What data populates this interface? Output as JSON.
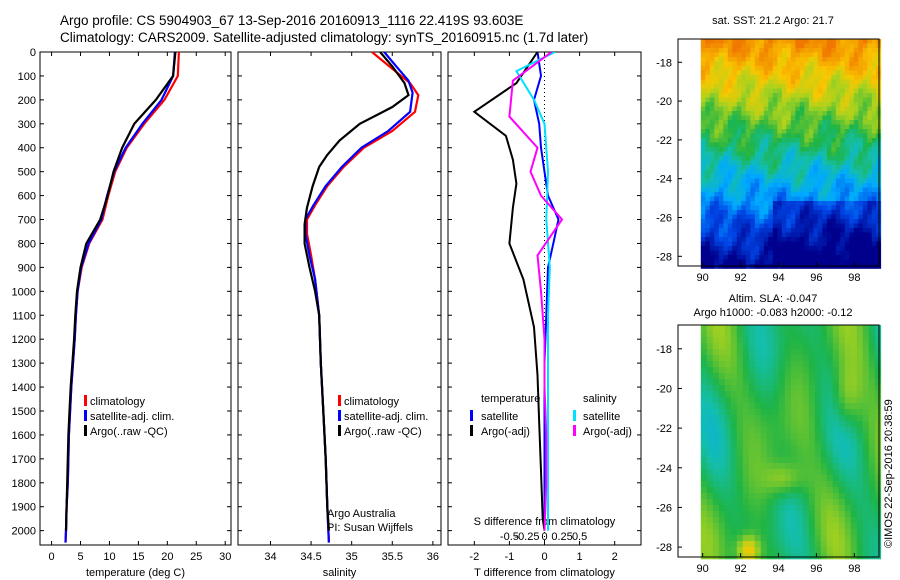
{
  "header": {
    "line1": "Argo profile: CS 5904903_67 13-Sep-2016 20160913_1116 22.419S 93.603E",
    "line2": "Climatology: CARS2009. Satellite-adjusted climatology: synTS_20160915.nc (1.7d later)"
  },
  "colors": {
    "climatology": "#ff0000",
    "satellite": "#0000ff",
    "argo": "#000000",
    "sat_salinity": "#00e0ff",
    "argo_salinity": "#ff00ff"
  },
  "depth_axis": {
    "ticks": [
      0,
      100,
      200,
      300,
      400,
      500,
      600,
      700,
      800,
      900,
      1000,
      1100,
      1200,
      1300,
      1400,
      1500,
      1600,
      1700,
      1800,
      1900,
      2000
    ],
    "range": [
      0,
      2060
    ]
  },
  "chart_data": [
    {
      "type": "line",
      "id": "temperature",
      "xlabel": "temperature (deg C)",
      "xlim": [
        -2,
        31
      ],
      "xticks": [
        0,
        5,
        10,
        15,
        20,
        25,
        30
      ],
      "legend": [
        "climatology",
        "satellite-adj. clim.",
        "Argo(..raw -QC)"
      ],
      "series": [
        {
          "name": "climatology",
          "color": "#ff0000",
          "points": [
            [
              22.0,
              0
            ],
            [
              21.8,
              100
            ],
            [
              19.5,
              200
            ],
            [
              16,
              300
            ],
            [
              13,
              400
            ],
            [
              11,
              500
            ],
            [
              9.8,
              600
            ],
            [
              8.8,
              700
            ],
            [
              6.5,
              800
            ],
            [
              5.2,
              900
            ],
            [
              4.5,
              1000
            ],
            [
              4.2,
              1100
            ],
            [
              4.0,
              1200
            ],
            [
              3.7,
              1300
            ],
            [
              3.4,
              1400
            ],
            [
              3.2,
              1500
            ],
            [
              3.0,
              1600
            ],
            [
              2.9,
              1700
            ],
            [
              2.8,
              1800
            ],
            [
              2.6,
              1900
            ],
            [
              2.5,
              2000
            ],
            [
              2.4,
              2050
            ]
          ]
        },
        {
          "name": "satellite-adj. clim.",
          "color": "#0000ff",
          "points": [
            [
              21.3,
              0
            ],
            [
              21.0,
              100
            ],
            [
              19.0,
              200
            ],
            [
              15.7,
              300
            ],
            [
              12.8,
              400
            ],
            [
              10.8,
              500
            ],
            [
              9.6,
              600
            ],
            [
              8.6,
              700
            ],
            [
              6.4,
              800
            ],
            [
              5.1,
              900
            ],
            [
              4.5,
              1000
            ],
            [
              4.2,
              1100
            ],
            [
              4.0,
              1200
            ],
            [
              3.7,
              1300
            ],
            [
              3.4,
              1400
            ],
            [
              3.2,
              1500
            ],
            [
              3.0,
              1600
            ],
            [
              2.9,
              1700
            ],
            [
              2.8,
              1800
            ],
            [
              2.6,
              1900
            ],
            [
              2.5,
              2000
            ],
            [
              2.4,
              2050
            ]
          ]
        },
        {
          "name": "Argo(..raw -QC)",
          "color": "#000000",
          "points": [
            [
              21.4,
              0
            ],
            [
              21.0,
              100
            ],
            [
              18.0,
              200
            ],
            [
              14.3,
              300
            ],
            [
              12.2,
              400
            ],
            [
              10.7,
              500
            ],
            [
              9.7,
              600
            ],
            [
              8.4,
              700
            ],
            [
              6.0,
              800
            ],
            [
              5.0,
              900
            ],
            [
              4.4,
              1000
            ],
            [
              4.1,
              1100
            ],
            [
              3.9,
              1200
            ],
            [
              3.6,
              1300
            ],
            [
              3.3,
              1400
            ],
            [
              3.1,
              1500
            ],
            [
              2.9,
              1600
            ],
            [
              2.8,
              1700
            ],
            [
              2.7,
              1800
            ],
            [
              2.6,
              1900
            ],
            [
              2.5,
              2000
            ]
          ]
        }
      ]
    },
    {
      "type": "line",
      "id": "salinity",
      "xlabel": "salinity",
      "xlim": [
        33.6,
        36.1
      ],
      "xticks": [
        34,
        34.5,
        35,
        35.5,
        36
      ],
      "legend": [
        "climatology",
        "satellite-adj. clim.",
        "Argo(..raw -QC)"
      ],
      "annotation": [
        "Argo Australia",
        "PI: Susan Wijffels"
      ],
      "series": [
        {
          "name": "climatology",
          "color": "#ff0000",
          "points": [
            [
              35.25,
              0
            ],
            [
              35.5,
              70
            ],
            [
              35.72,
              130
            ],
            [
              35.82,
              180
            ],
            [
              35.78,
              250
            ],
            [
              35.5,
              330
            ],
            [
              35.15,
              400
            ],
            [
              34.9,
              480
            ],
            [
              34.7,
              560
            ],
            [
              34.55,
              640
            ],
            [
              34.45,
              700
            ],
            [
              34.45,
              760
            ],
            [
              34.5,
              850
            ],
            [
              34.55,
              950
            ],
            [
              34.6,
              1100
            ],
            [
              34.62,
              1300
            ],
            [
              34.65,
              1500
            ],
            [
              34.68,
              1700
            ],
            [
              34.7,
              1900
            ],
            [
              34.72,
              2050
            ]
          ]
        },
        {
          "name": "satellite-adj. clim.",
          "color": "#0000ff",
          "points": [
            [
              35.4,
              0
            ],
            [
              35.55,
              60
            ],
            [
              35.7,
              120
            ],
            [
              35.75,
              170
            ],
            [
              35.72,
              250
            ],
            [
              35.45,
              330
            ],
            [
              35.12,
              400
            ],
            [
              34.88,
              480
            ],
            [
              34.68,
              560
            ],
            [
              34.53,
              640
            ],
            [
              34.43,
              700
            ],
            [
              34.43,
              760
            ],
            [
              34.48,
              850
            ],
            [
              34.55,
              950
            ],
            [
              34.6,
              1100
            ],
            [
              34.62,
              1300
            ],
            [
              34.65,
              1500
            ],
            [
              34.68,
              1700
            ],
            [
              34.7,
              1900
            ],
            [
              34.72,
              2050
            ]
          ]
        },
        {
          "name": "Argo(..raw -QC)",
          "color": "#000000",
          "points": [
            [
              35.35,
              0
            ],
            [
              35.5,
              60
            ],
            [
              35.65,
              130
            ],
            [
              35.7,
              180
            ],
            [
              35.5,
              230
            ],
            [
              35.1,
              300
            ],
            [
              34.85,
              370
            ],
            [
              34.7,
              430
            ],
            [
              34.6,
              480
            ],
            [
              34.52,
              560
            ],
            [
              34.45,
              650
            ],
            [
              34.42,
              720
            ],
            [
              34.42,
              800
            ],
            [
              34.48,
              900
            ],
            [
              34.55,
              1000
            ],
            [
              34.6,
              1100
            ],
            [
              34.62,
              1300
            ],
            [
              34.65,
              1500
            ],
            [
              34.68,
              1700
            ],
            [
              34.7,
              1900
            ],
            [
              34.72,
              2000
            ]
          ]
        }
      ]
    },
    {
      "type": "line",
      "id": "difference",
      "xlabel": "T difference from climatology",
      "xlabel_top": "S difference from climatology",
      "xlim": [
        -2.75,
        2.75
      ],
      "xticks": [
        -2,
        -1,
        0,
        1,
        2
      ],
      "xticks_top": [
        "-0.5",
        "-0.25",
        "0",
        "0.25",
        "0.5"
      ],
      "legend_temperature": [
        "temperature",
        "satellite",
        "Argo(-adj)"
      ],
      "legend_salinity": [
        "salinity",
        "satellite",
        "Argo(-adj)"
      ],
      "series": [
        {
          "name": "satellite",
          "color": "#0000ff",
          "points": [
            [
              -0.2,
              0
            ],
            [
              -0.1,
              100
            ],
            [
              -0.3,
              200
            ],
            [
              -0.15,
              300
            ],
            [
              -0.1,
              400
            ],
            [
              0.0,
              500
            ],
            [
              0.1,
              600
            ],
            [
              0.4,
              700
            ],
            [
              0.25,
              800
            ],
            [
              0.1,
              900
            ],
            [
              0.05,
              1100
            ],
            [
              0.0,
              1300
            ],
            [
              0.0,
              1500
            ],
            [
              0.0,
              1700
            ],
            [
              0.0,
              1900
            ],
            [
              0.0,
              2000
            ]
          ]
        },
        {
          "name": "Argo(-adj)",
          "color": "#000000",
          "points": [
            [
              -0.2,
              0
            ],
            [
              -0.8,
              130
            ],
            [
              -2.0,
              250
            ],
            [
              -1.1,
              350
            ],
            [
              -0.9,
              450
            ],
            [
              -0.8,
              550
            ],
            [
              -0.9,
              650
            ],
            [
              -1.0,
              800
            ],
            [
              -0.6,
              950
            ],
            [
              -0.3,
              1150
            ],
            [
              -0.2,
              1350
            ],
            [
              -0.15,
              1550
            ],
            [
              -0.1,
              1750
            ],
            [
              -0.05,
              1950
            ],
            [
              0.0,
              2000
            ]
          ]
        },
        {
          "name": "satellite",
          "color": "#00e0ff",
          "points": [
            [
              0.3,
              0
            ],
            [
              -0.8,
              80
            ],
            [
              -0.3,
              200
            ],
            [
              0.0,
              300
            ],
            [
              0.1,
              500
            ],
            [
              0.05,
              700
            ],
            [
              0.15,
              900
            ],
            [
              0.1,
              1100
            ],
            [
              0.1,
              1300
            ],
            [
              0.1,
              1500
            ],
            [
              0.1,
              1700
            ],
            [
              0.1,
              1900
            ],
            [
              0.1,
              2000
            ]
          ]
        },
        {
          "name": "Argo(-adj)",
          "color": "#ff00ff",
          "points": [
            [
              0.2,
              0
            ],
            [
              -0.9,
              120
            ],
            [
              -1.0,
              270
            ],
            [
              -0.2,
              400
            ],
            [
              -0.4,
              500
            ],
            [
              -0.1,
              600
            ],
            [
              0.5,
              700
            ],
            [
              -0.2,
              850
            ],
            [
              -0.1,
              1000
            ],
            [
              0.0,
              1200
            ],
            [
              0.0,
              1400
            ],
            [
              0.05,
              1600
            ],
            [
              0.05,
              1800
            ],
            [
              0.0,
              2000
            ]
          ]
        }
      ]
    },
    {
      "type": "heatmap",
      "id": "sst-map",
      "title": "sat. SST: 21.2 Argo: 21.7",
      "xlim": [
        88.7,
        99.3
      ],
      "ylim": [
        -28.5,
        -16.8
      ],
      "xticks": [
        90,
        92,
        94,
        96,
        98
      ],
      "yticks": [
        -18,
        -20,
        -22,
        -24,
        -26,
        -28
      ],
      "plot_xlim": [
        89.9,
        99.3
      ]
    },
    {
      "type": "heatmap",
      "id": "sla-map",
      "title": "Altim. SLA: -0.047",
      "title2": "Argo h1000: -0.083 h2000: -0.12",
      "xlim": [
        88.7,
        99.3
      ],
      "ylim": [
        -28.5,
        -16.8
      ],
      "xticks": [
        90,
        92,
        94,
        96,
        98
      ],
      "yticks": [
        -18,
        -20,
        -22,
        -24,
        -26,
        -28
      ],
      "plot_xlim": [
        89.9,
        99.3
      ]
    }
  ],
  "footer": {
    "credit": "©IMOS 22-Sep-2016 20:38:59"
  }
}
